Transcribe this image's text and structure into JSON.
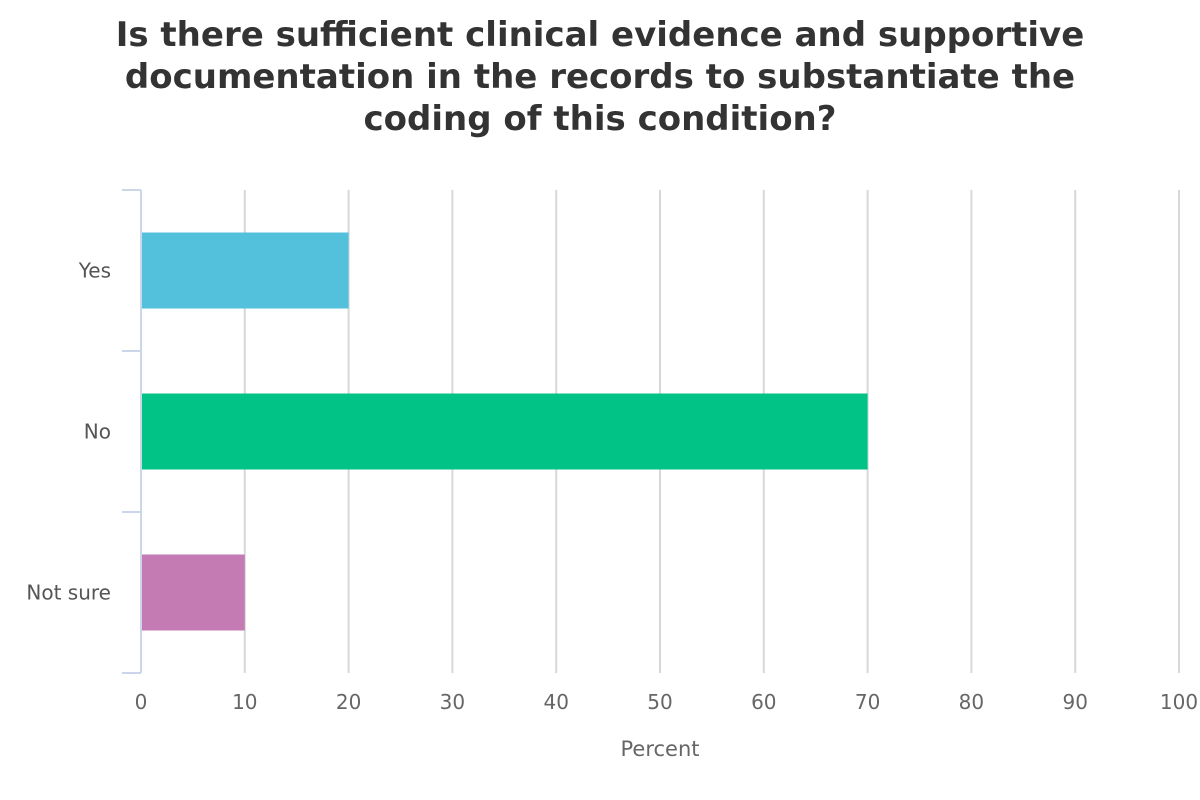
{
  "chart_data": {
    "type": "bar",
    "orientation": "horizontal",
    "title": "Is there sufficient clinical evidence and supportive documentation in the records to substantiate the coding of this condition?",
    "categories": [
      "Yes",
      "No",
      "Not sure"
    ],
    "values": [
      20,
      70,
      10
    ],
    "colors": [
      "#54c1dc",
      "#00c385",
      "#c47bb4"
    ],
    "xlabel": "Percent",
    "ylabel": "",
    "xlim": [
      0,
      100
    ],
    "xticks": [
      "0",
      "10",
      "20",
      "30",
      "40",
      "50",
      "60",
      "70",
      "80",
      "90",
      "100"
    ],
    "grid": true,
    "legend": "none"
  }
}
